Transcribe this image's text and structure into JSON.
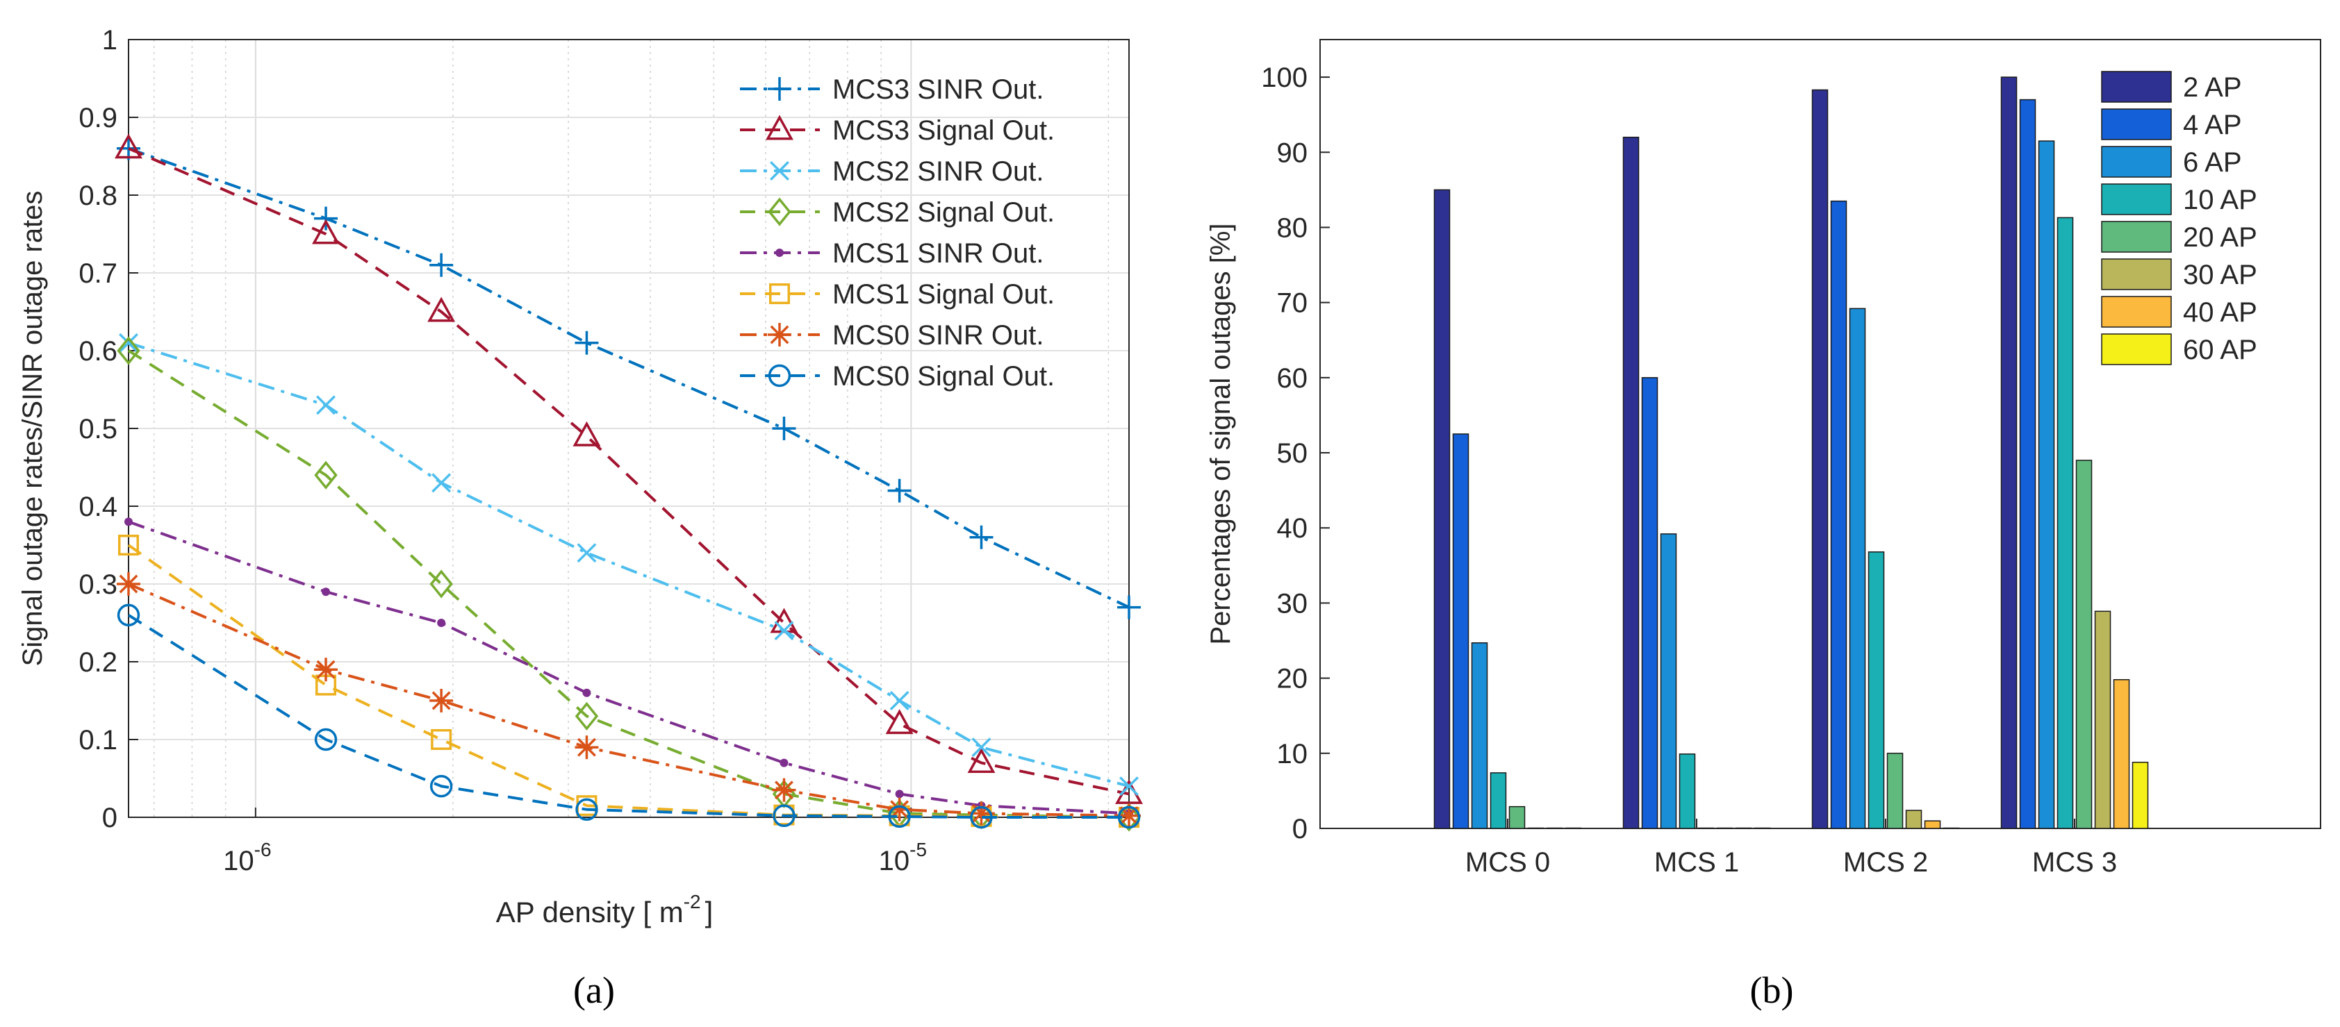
{
  "chart_data": [
    {
      "type": "line",
      "panel_caption": "(a)",
      "xscale": "log",
      "xlabel": "AP density [ m",
      "xlabel_sup": "-2",
      "xlabel_tail": "]",
      "ylabel": "Signal outage rates/SINR outage rates",
      "xlim": [
        6.4e-07,
        2.15e-05
      ],
      "ylim": [
        0,
        1
      ],
      "yticks": [
        0,
        0.1,
        0.2,
        0.3,
        0.4,
        0.5,
        0.6,
        0.7,
        0.8,
        0.9,
        1
      ],
      "ytick_labels": [
        "0",
        "0.1",
        "0.2",
        "0.3",
        "0.4",
        "0.5",
        "0.6",
        "0.7",
        "0.8",
        "0.9",
        "1"
      ],
      "xtick_labels": [
        {
          "base": "10",
          "exp": "-6",
          "value": 1e-06
        },
        {
          "base": "10",
          "exp": "-5",
          "value": 1e-05
        }
      ],
      "grid": true,
      "legend_position": "top-right",
      "x": [
        6.4e-07,
        1.28e-06,
        1.92e-06,
        3.2e-06,
        6.4e-06,
        9.6e-06,
        1.28e-05,
        2.15e-05
      ],
      "series": [
        {
          "name": "MCS3 SINR Out.",
          "color": "#0072bd",
          "marker": "plus",
          "dash": "dashdot",
          "values": [
            0.86,
            0.77,
            0.71,
            0.61,
            0.5,
            0.42,
            0.36,
            0.27
          ]
        },
        {
          "name": "MCS3 Signal Out.",
          "color": "#a2142f",
          "marker": "triangle",
          "dash": "dash",
          "values": [
            0.86,
            0.75,
            0.65,
            0.49,
            0.25,
            0.12,
            0.07,
            0.03
          ]
        },
        {
          "name": "MCS2 SINR Out.",
          "color": "#4dbeee",
          "marker": "x",
          "dash": "dashdot",
          "values": [
            0.61,
            0.53,
            0.43,
            0.34,
            0.24,
            0.15,
            0.09,
            0.04
          ]
        },
        {
          "name": "MCS2 Signal Out.",
          "color": "#77ac30",
          "marker": "diamond",
          "dash": "dash",
          "values": [
            0.6,
            0.44,
            0.3,
            0.13,
            0.03,
            0.005,
            0.003,
            0.0
          ]
        },
        {
          "name": "MCS1 SINR Out.",
          "color": "#7e2f8e",
          "marker": "dot",
          "dash": "dashdot",
          "values": [
            0.38,
            0.29,
            0.25,
            0.16,
            0.07,
            0.03,
            0.015,
            0.005
          ]
        },
        {
          "name": "MCS1 Signal Out.",
          "color": "#edb120",
          "marker": "square",
          "dash": "dash",
          "values": [
            0.35,
            0.17,
            0.1,
            0.015,
            0.003,
            0.002,
            0.001,
            0.0
          ]
        },
        {
          "name": "MCS0 SINR Out.",
          "color": "#d95319",
          "marker": "star",
          "dash": "dashdot",
          "values": [
            0.3,
            0.19,
            0.15,
            0.09,
            0.035,
            0.01,
            0.005,
            0.002
          ]
        },
        {
          "name": "MCS0 Signal Out.",
          "color": "#0072bd",
          "marker": "circle",
          "dash": "dash",
          "values": [
            0.26,
            0.1,
            0.04,
            0.01,
            0.002,
            0.001,
            0.0,
            0.0
          ]
        }
      ]
    },
    {
      "type": "bar",
      "panel_caption": "(b)",
      "xlabel": "",
      "ylabel": "Percentages of signal outages [%]",
      "ylim": [
        0,
        105
      ],
      "yticks": [
        0,
        10,
        20,
        30,
        40,
        50,
        60,
        70,
        80,
        90,
        100
      ],
      "ytick_labels": [
        "0",
        "10",
        "20",
        "30",
        "40",
        "50",
        "60",
        "70",
        "80",
        "90",
        "100"
      ],
      "grid": false,
      "legend_position": "top-right",
      "categories": [
        "MCS 0",
        "MCS 1",
        "MCS 2",
        "MCS 3"
      ],
      "series": [
        {
          "name": "2 AP",
          "color": "#2e3192",
          "values": [
            85,
            92,
            98.3,
            100
          ]
        },
        {
          "name": "4 AP",
          "color": "#1460d8",
          "values": [
            52.5,
            60,
            83.5,
            97
          ]
        },
        {
          "name": "6 AP",
          "color": "#1a8ed6",
          "values": [
            24.7,
            39.2,
            69.2,
            91.5
          ]
        },
        {
          "name": "10 AP",
          "color": "#1ab0b4",
          "values": [
            7.4,
            9.9,
            36.8,
            81.3
          ]
        },
        {
          "name": "20 AP",
          "color": "#60ba7e",
          "values": [
            2.9,
            0,
            10,
            49
          ]
        },
        {
          "name": "30 AP",
          "color": "#b9b65b",
          "values": [
            0,
            0,
            2.4,
            28.9
          ]
        },
        {
          "name": "40 AP",
          "color": "#fbb93d",
          "values": [
            0,
            0,
            1,
            19.8
          ]
        },
        {
          "name": "60 AP",
          "color": "#f5f017",
          "values": [
            0,
            0,
            0,
            8.8
          ]
        }
      ]
    }
  ]
}
